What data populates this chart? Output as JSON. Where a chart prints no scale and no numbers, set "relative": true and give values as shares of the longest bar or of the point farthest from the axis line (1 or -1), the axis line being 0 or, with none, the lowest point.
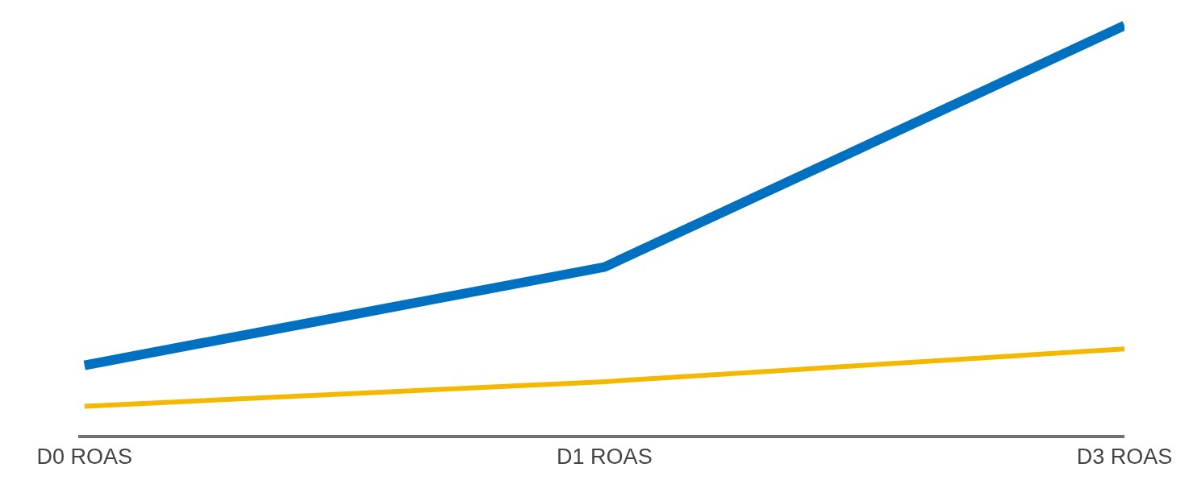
{
  "chart_data": {
    "type": "line",
    "relative": true,
    "categories": [
      "D0 ROAS",
      "D1 ROAS",
      "D3 ROAS"
    ],
    "series": [
      {
        "color": "#0070c0",
        "values": [
          0.17,
          0.41,
          1
        ]
      },
      {
        "color": "#f5b800",
        "values": [
          0.07,
          0.13,
          0.21
        ]
      }
    ],
    "marker": "none",
    "line_style": "solid"
  }
}
